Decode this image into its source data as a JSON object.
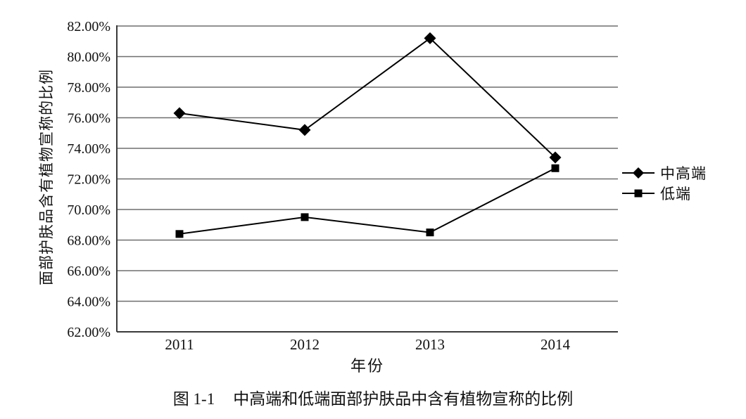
{
  "figure": {
    "caption_prefix": "图 1-1",
    "caption_text": "中高端和低端面部护肤品中含有植物宣称的比例"
  },
  "chart_data": {
    "type": "line",
    "categories": [
      "2011",
      "2012",
      "2013",
      "2014"
    ],
    "series": [
      {
        "name": "中高端",
        "marker": "diamond",
        "values": [
          76.3,
          75.2,
          81.2,
          73.4
        ]
      },
      {
        "name": "低端",
        "marker": "square",
        "values": [
          68.4,
          69.5,
          68.5,
          72.7
        ]
      }
    ],
    "title": "",
    "xlabel": "年份",
    "ylabel": "面部护肤品含有植物宣称的比例",
    "ylim": [
      62,
      82
    ],
    "ytick_step": 2,
    "ytick_labels": [
      "82.00%",
      "80.00%",
      "78.00%",
      "76.00%",
      "74.00%",
      "72.00%",
      "70.00%",
      "68.00%",
      "66.00%",
      "64.00%",
      "62.00%"
    ],
    "grid": true,
    "legend_position": "right",
    "colors": {
      "line": "#000000",
      "marker": "#000000",
      "gridline": "#6e6e6e",
      "axis": "#3a3a3a",
      "text": "#111111",
      "background": "#ffffff"
    }
  }
}
